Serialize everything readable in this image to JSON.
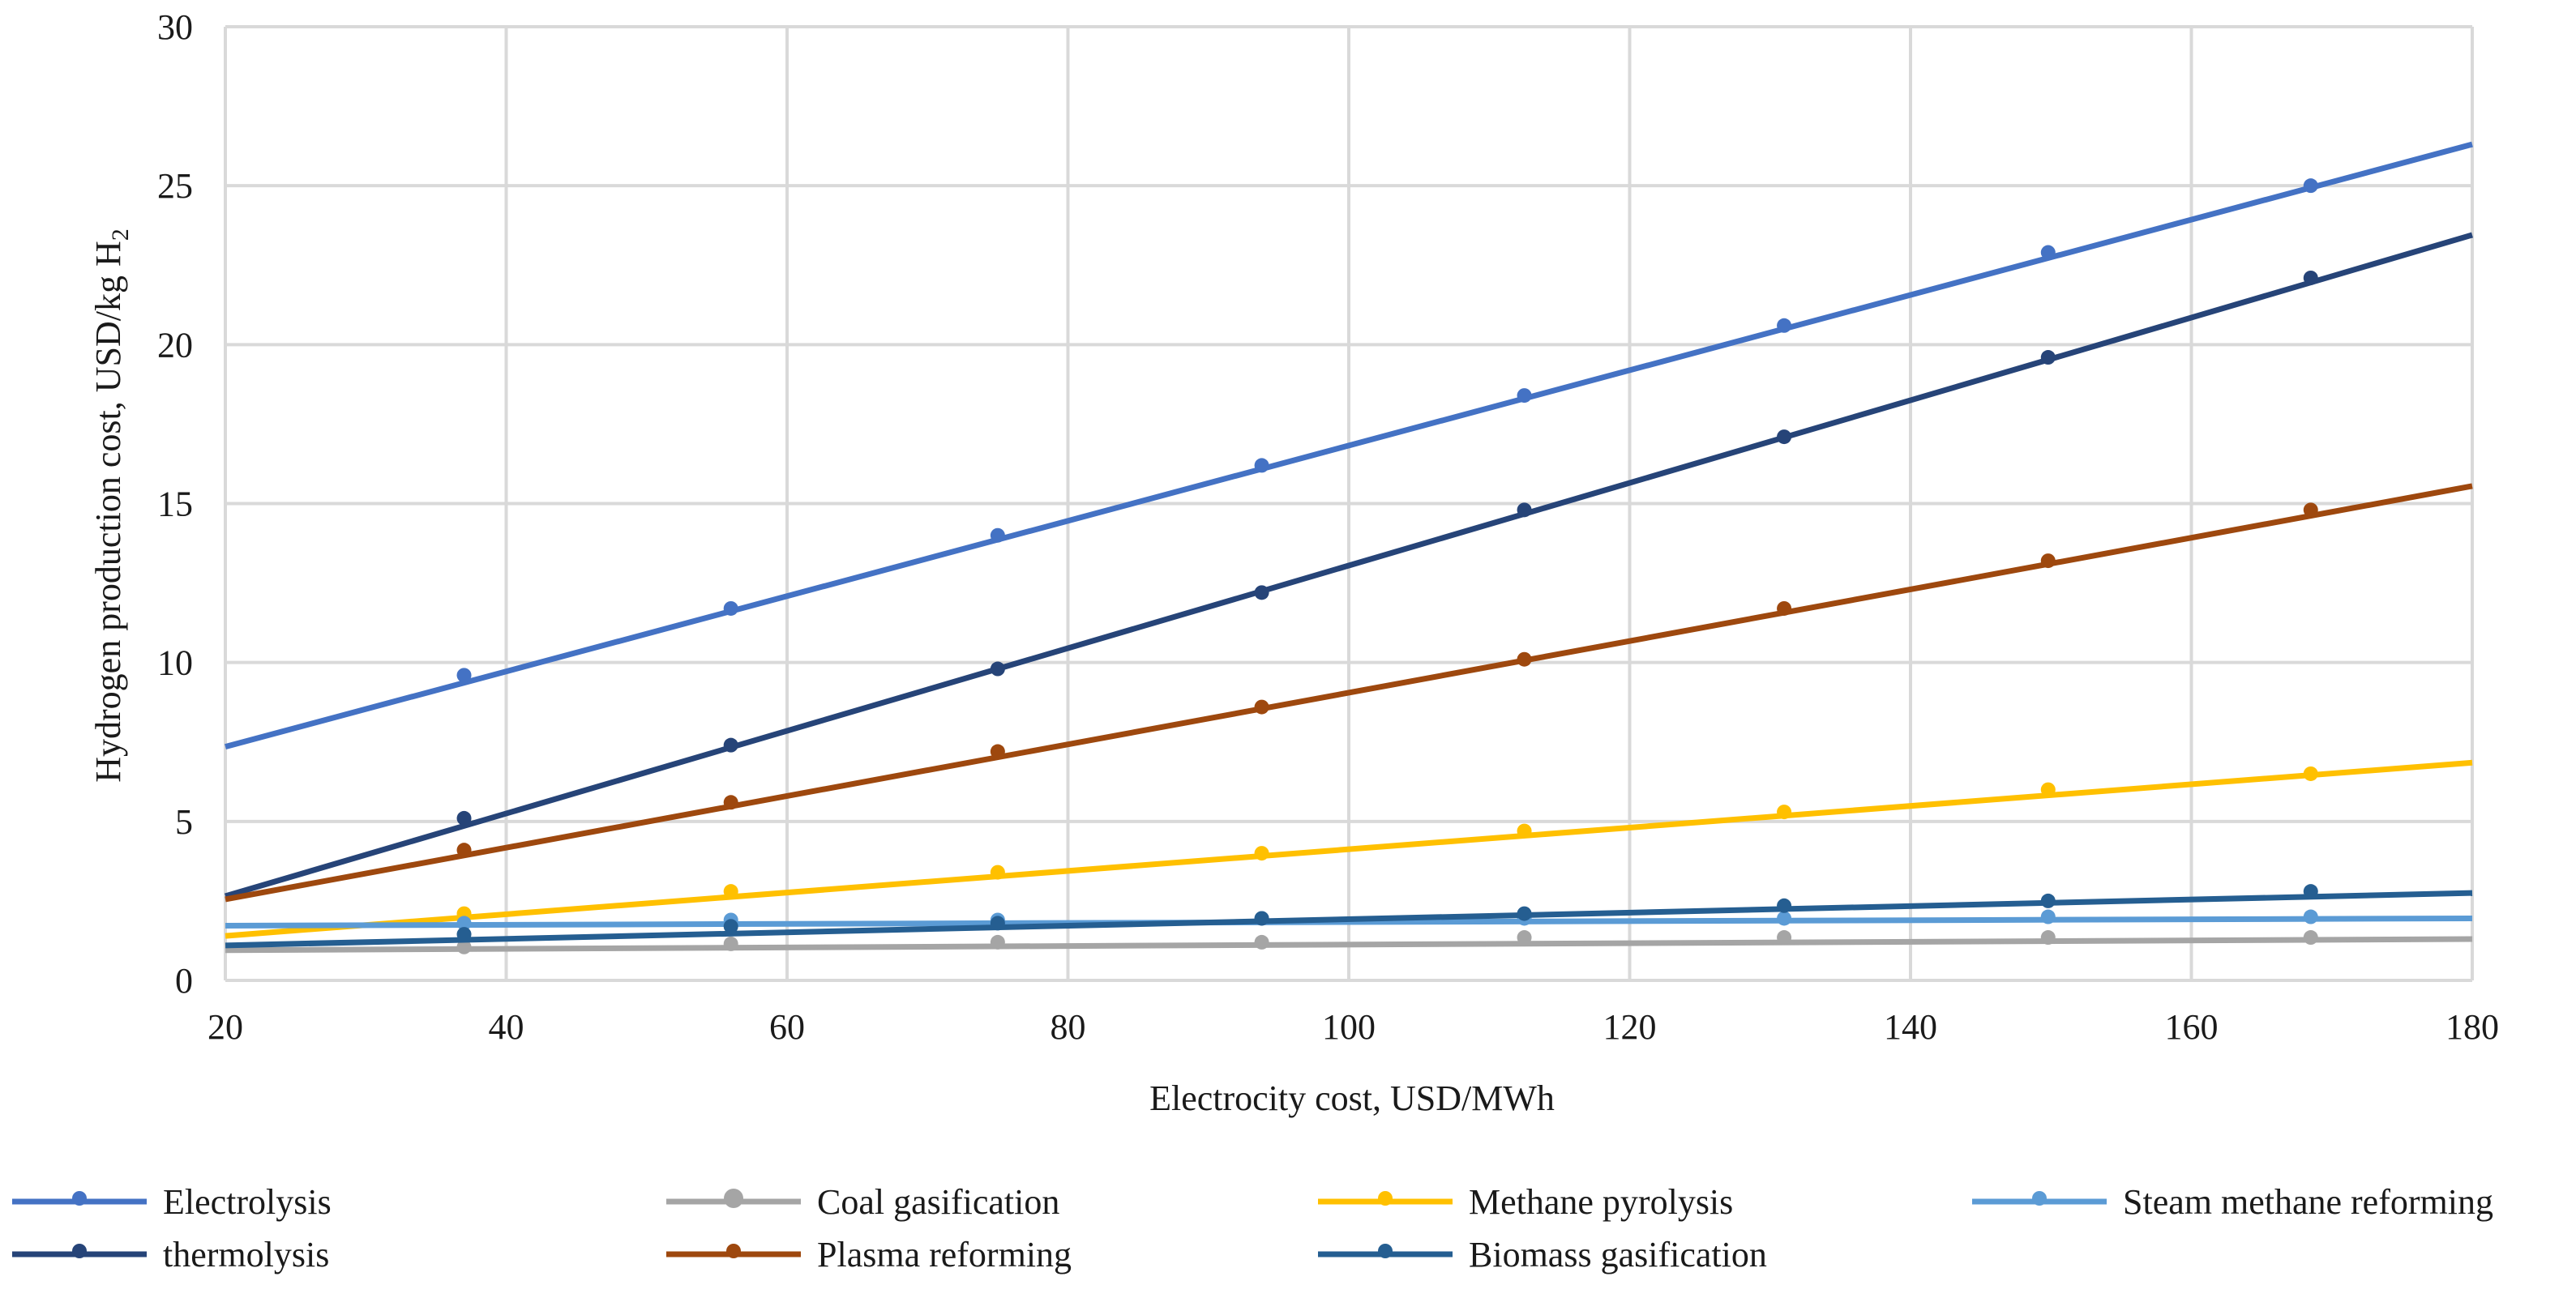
{
  "chart_data": {
    "type": "scatter",
    "title": "",
    "xlabel": "Electrocity cost, USD/MWh",
    "ylabel_main": "Hydrogen production cost, USD/kg H",
    "ylabel_sub": "2",
    "xlim": [
      20,
      180
    ],
    "ylim": [
      0,
      30
    ],
    "xticks": [
      20,
      40,
      60,
      80,
      100,
      120,
      140,
      160,
      180
    ],
    "yticks": [
      0,
      5,
      10,
      15,
      20,
      25,
      30
    ],
    "grid": true,
    "legend_position": "bottom",
    "x": [
      37,
      56,
      75,
      93.8,
      112.5,
      131,
      149.8,
      168.5
    ],
    "series": [
      {
        "name": "Electrolysis",
        "color": "#4472C4",
        "values": [
          9.6,
          11.7,
          14.0,
          16.2,
          18.4,
          20.6,
          22.9,
          25.0
        ],
        "trend": [
          7.35,
          26.3
        ]
      },
      {
        "name": "Coal gasification",
        "color": "#A5A5A5",
        "values": [
          1.05,
          1.15,
          1.2,
          1.2,
          1.35,
          1.35,
          1.35,
          1.35
        ],
        "trend": [
          0.95,
          1.3
        ]
      },
      {
        "name": "Methane pyrolysis",
        "color": "#FFC000",
        "values": [
          2.1,
          2.8,
          3.4,
          4.0,
          4.7,
          5.3,
          6.0,
          6.5
        ],
        "trend": [
          1.4,
          6.85
        ]
      },
      {
        "name": "Steam methane reforming",
        "color": "#5B9BD5",
        "values": [
          1.8,
          1.9,
          1.9,
          1.95,
          1.95,
          1.95,
          2.0,
          2.0
        ],
        "trend": [
          1.72,
          1.95
        ]
      },
      {
        "name": "thermolysis",
        "color": "#264478",
        "values": [
          5.1,
          7.4,
          9.8,
          12.2,
          14.8,
          17.1,
          19.6,
          22.1
        ],
        "trend": [
          2.65,
          23.45
        ]
      },
      {
        "name": "Plasma reforming",
        "color": "#9E480E",
        "values": [
          4.1,
          5.6,
          7.2,
          8.6,
          10.1,
          11.7,
          13.2,
          14.8
        ],
        "trend": [
          2.55,
          15.55
        ]
      },
      {
        "name": "Biomass gasification",
        "color": "#255E91",
        "values": [
          1.45,
          1.7,
          1.8,
          1.95,
          2.1,
          2.35,
          2.5,
          2.8
        ],
        "trend": [
          1.1,
          2.75
        ]
      }
    ]
  }
}
